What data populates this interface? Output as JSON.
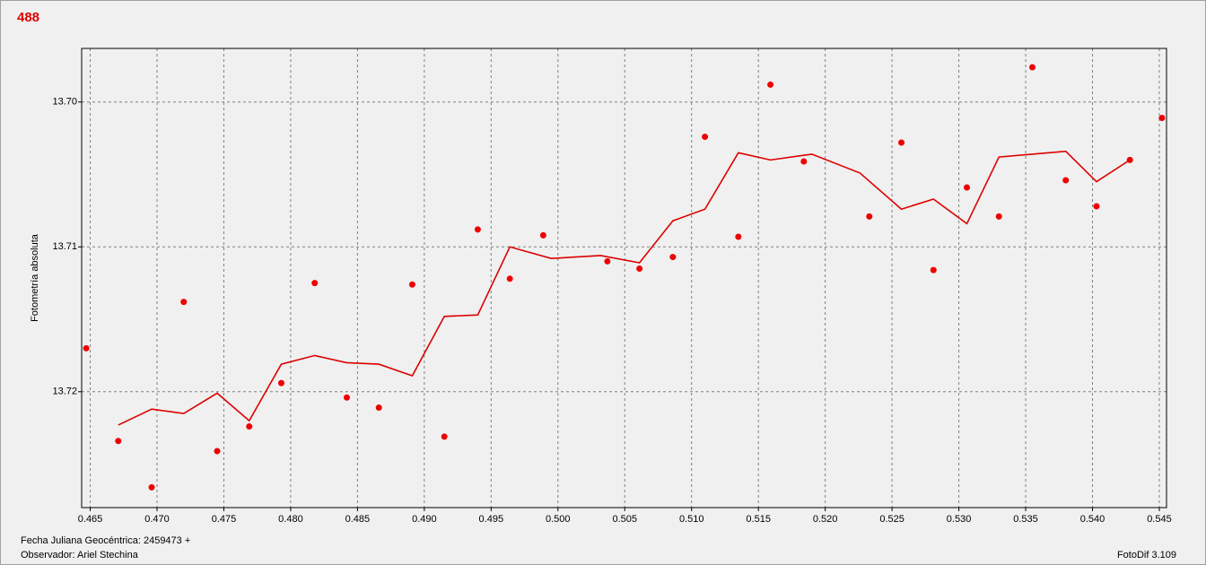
{
  "chart_data": {
    "type": "scatter",
    "title": "488",
    "ylabel": "Fotometría absoluta",
    "footer_left": [
      "Fecha Juliana Geocéntrica: 2459473 +",
      "Observador: Ariel Stechina"
    ],
    "footer_right": "FotoDif 3.109",
    "xlim": [
      0.46436,
      0.54554
    ],
    "ylim": [
      13.728,
      13.6963
    ],
    "grid": true,
    "xticks": [
      0.465,
      {
        "value": 0.47,
        "label": "0.470"
      },
      0.475,
      {
        "value": 0.48,
        "label": "0.480"
      },
      0.485,
      {
        "value": 0.49,
        "label": "0.490"
      },
      0.495,
      {
        "value": 0.5,
        "label": "0.500"
      },
      0.505,
      {
        "value": 0.51,
        "label": "0.510"
      },
      0.515,
      {
        "value": 0.52,
        "label": "0.520"
      },
      0.525,
      {
        "value": 0.53,
        "label": "0.530"
      },
      0.535,
      {
        "value": 0.54,
        "label": "0.540"
      },
      0.545
    ],
    "yticks": [
      {
        "value": 13.7,
        "label": "13.70"
      },
      13.71,
      13.72
    ],
    "series": [
      {
        "type": "scatter",
        "color": "#ee0000",
        "x": [
          0.4647,
          0.4671,
          0.4696,
          0.472,
          0.4745,
          0.4769,
          0.4793,
          0.4818,
          0.4842,
          0.4866,
          0.4891,
          0.4915,
          0.494,
          0.4964,
          0.4989,
          0.5037,
          0.5061,
          0.5086,
          0.511,
          0.5135,
          0.5159,
          0.5184,
          0.5233,
          0.5257,
          0.5281,
          0.5306,
          0.533,
          0.5355,
          0.538,
          0.5403,
          0.5428,
          0.5452
        ],
        "values": [
          13.717,
          13.7234,
          13.7266,
          13.7138,
          13.7241,
          13.7224,
          13.7194,
          13.7125,
          13.7204,
          13.7211,
          13.7126,
          13.7231,
          13.7088,
          13.7122,
          13.7092,
          13.711,
          13.7115,
          13.7107,
          13.7024,
          13.7093,
          13.6988,
          13.7041,
          13.7079,
          13.7028,
          13.7116,
          13.7059,
          13.7079,
          13.6976,
          13.7054,
          13.7072,
          13.704,
          13.7011
        ]
      },
      {
        "type": "line",
        "color": "#dd0000",
        "x": [
          0.4671,
          0.4696,
          0.472,
          0.4745,
          0.4769,
          0.4793,
          0.4818,
          0.4842,
          0.4866,
          0.4891,
          0.4915,
          0.494,
          0.4964,
          0.4995,
          0.5032,
          0.5061,
          0.5086,
          0.511,
          0.5135,
          0.5159,
          0.519,
          0.5226,
          0.5257,
          0.5281,
          0.5306,
          0.533,
          0.538,
          0.5403,
          0.5428
        ],
        "values": [
          13.7223,
          13.7212,
          13.7215,
          13.7201,
          13.722,
          13.7181,
          13.7175,
          13.718,
          13.7181,
          13.7189,
          13.7148,
          13.7147,
          13.71,
          13.7108,
          13.7106,
          13.7111,
          13.7082,
          13.7074,
          13.7035,
          13.704,
          13.7036,
          13.7049,
          13.7074,
          13.7067,
          13.7084,
          13.7038,
          13.7034,
          13.7055,
          13.704
        ]
      }
    ]
  }
}
